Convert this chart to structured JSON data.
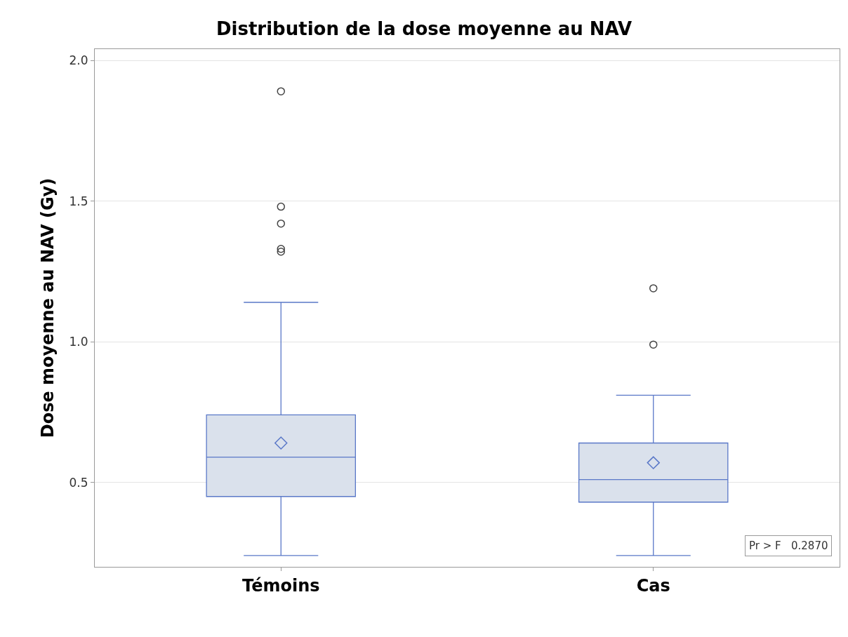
{
  "chart_data": {
    "type": "box",
    "title": "Distribution de la dose moyenne au NAV",
    "ylabel": "Dose moyenne au NAV (Gy)",
    "categories": [
      "Témoins",
      "Cas"
    ],
    "boxes": [
      {
        "low": 0.24,
        "q1": 0.45,
        "median": 0.59,
        "q3": 0.74,
        "high": 1.14,
        "mean": 0.64,
        "outliers": [
          1.89,
          1.48,
          1.42,
          1.33,
          1.32
        ]
      },
      {
        "low": 0.24,
        "q1": 0.43,
        "median": 0.51,
        "q3": 0.64,
        "high": 0.81,
        "mean": 0.57,
        "outliers": [
          1.19,
          0.99
        ]
      }
    ],
    "color": "#5a78c8",
    "ylim": [
      0.2,
      2.04
    ],
    "yticks": [
      {
        "value": 0.5,
        "label": "0.5"
      },
      {
        "value": 1.0,
        "label": "1.0"
      },
      {
        "value": 1.5,
        "label": "1.5"
      },
      {
        "value": 2.0,
        "label": "2.0"
      }
    ],
    "grid": "y",
    "annotations": [
      "Pr > F   0.2870"
    ]
  }
}
